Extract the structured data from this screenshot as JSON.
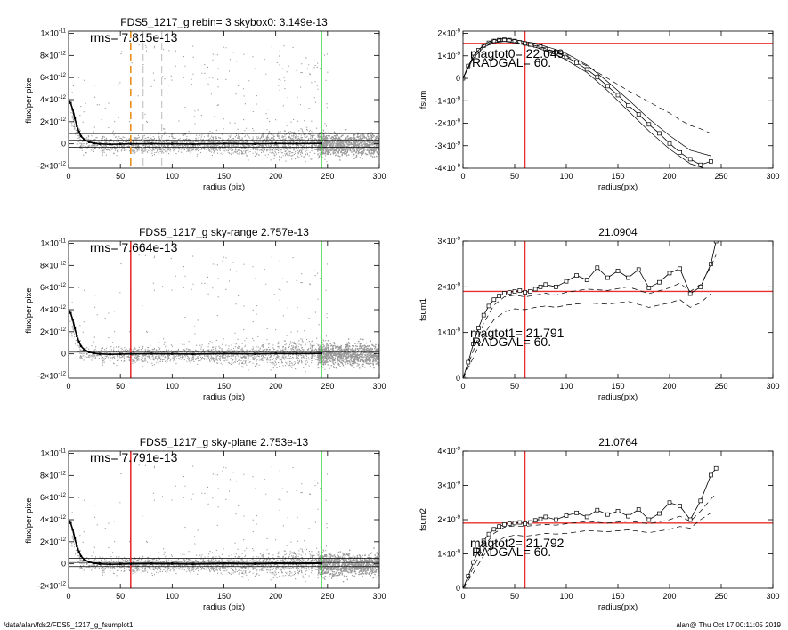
{
  "footer": {
    "left": "/data/alan/fds2/FDS5_1217_g_fsumplot1",
    "right": "alan@  Thu Oct 17 00:11:05 2019"
  },
  "colors": {
    "scatter": "#9a9a9a",
    "profile": "#000000",
    "red_marker": "#e8312f",
    "green_marker": "#22cc22",
    "orange_marker": "#e8901e",
    "gray_marker": "#bbbbbb"
  },
  "chart_data": [
    {
      "type": "scatter",
      "title": "FDS5_1217_g rebin= 3    skybox0:  3.149e-13",
      "annotation": "rms= 7.815e-13",
      "xlabel": "radius (pix)",
      "ylabel": "flux/per pixel",
      "xlim": [
        0,
        300
      ],
      "ylim": [
        -2.2e-12,
        1.02e-11
      ],
      "xticks": [
        "0",
        "50",
        "100",
        "150",
        "200",
        "250",
        "300"
      ],
      "yticks": [
        {
          "v": -2e-12,
          "m": "-2",
          "e": "-12"
        },
        {
          "v": 0,
          "m": "0",
          "e": ""
        },
        {
          "v": 2e-12,
          "m": "2",
          "e": "-12"
        },
        {
          "v": 4e-12,
          "m": "4",
          "e": "-12"
        },
        {
          "v": 6e-12,
          "m": "6",
          "e": "-12"
        },
        {
          "v": 8e-12,
          "m": "8",
          "e": "-12"
        },
        {
          "v": 1e-11,
          "m": "1",
          "e": "-11"
        }
      ],
      "hlines": [
        3.2e-13,
        -3e-13,
        9.3e-13
      ],
      "vlines": [
        {
          "x": 60,
          "color": "orange",
          "style": "dashed"
        },
        {
          "x": 72,
          "color": "gray",
          "style": "dashed"
        },
        {
          "x": 90,
          "color": "gray",
          "style": "dashed"
        },
        {
          "x": 244,
          "color": "green",
          "style": "solid"
        }
      ],
      "profile": {
        "x": [
          0,
          2,
          4,
          6,
          8,
          10,
          12,
          15,
          20,
          25,
          30,
          40,
          50,
          60,
          80,
          100,
          120,
          150,
          180,
          200,
          220,
          244
        ],
        "y": [
          3.9e-12,
          3.7e-12,
          3.1e-12,
          2.3e-12,
          1.6e-12,
          1.1e-12,
          7e-13,
          4e-13,
          1.5e-13,
          5e-14,
          0,
          -4e-14,
          -2e-14,
          0,
          1e-14,
          0,
          -2e-14,
          2e-14,
          0,
          3e-14,
          2e-14,
          4e-14
        ]
      }
    },
    {
      "type": "line",
      "title": "",
      "ylabel": "fsum",
      "xlabel": "radius(pix)",
      "xlim": [
        0,
        300
      ],
      "ylim": [
        -4e-09,
        2.1e-09
      ],
      "xticks": [
        "0",
        "50",
        "100",
        "150",
        "200",
        "250",
        "300"
      ],
      "yticks": [
        {
          "v": -4e-09,
          "m": "-4",
          "e": "-9"
        },
        {
          "v": -3e-09,
          "m": "-3",
          "e": "-9"
        },
        {
          "v": -2e-09,
          "m": "-2",
          "e": "-9"
        },
        {
          "v": -1e-09,
          "m": "-1",
          "e": "-9"
        },
        {
          "v": 0,
          "m": "0",
          "e": ""
        },
        {
          "v": 1e-09,
          "m": "1",
          "e": "-9"
        },
        {
          "v": 2e-09,
          "m": "2",
          "e": "-9"
        }
      ],
      "annotation_mag": "magtot0=  22.049",
      "annotation_rad": "RADGAL=     60.",
      "vline": 60,
      "hline": 1.55e-09,
      "series": [
        {
          "style": "squares",
          "x": [
            0,
            5,
            10,
            15,
            20,
            25,
            30,
            35,
            40,
            45,
            50,
            55,
            60,
            65,
            70,
            75,
            80,
            90,
            100,
            110,
            120,
            130,
            140,
            150,
            160,
            170,
            180,
            190,
            200,
            210,
            220,
            230,
            240
          ],
          "y": [
            0,
            5.5e-10,
            9.5e-10,
            1.25e-09,
            1.45e-09,
            1.58e-09,
            1.66e-09,
            1.7e-09,
            1.72e-09,
            1.7e-09,
            1.66e-09,
            1.6e-09,
            1.55e-09,
            1.5e-09,
            1.46e-09,
            1.42e-09,
            1.3e-09,
            1.15e-09,
            9.5e-10,
            7e-10,
            4e-10,
            5e-11,
            -3.5e-10,
            -7.5e-10,
            -1.2e-09,
            -1.6e-09,
            -2.05e-09,
            -2.45e-09,
            -2.9e-09,
            -3.3e-09,
            -3.6e-09,
            -3.85e-09,
            -3.7e-09
          ]
        },
        {
          "style": "solid",
          "x": [
            0,
            10,
            20,
            30,
            40,
            50,
            60,
            70,
            80,
            90,
            100,
            120,
            140,
            160,
            180,
            200,
            220,
            240
          ],
          "y": [
            0,
            1e-09,
            1.5e-09,
            1.72e-09,
            1.78e-09,
            1.72e-09,
            1.63e-09,
            1.56e-09,
            1.42e-09,
            1.28e-09,
            1.1e-09,
            6e-10,
            -1.5e-10,
            -9.5e-10,
            -1.8e-09,
            -2.55e-09,
            -3.2e-09,
            -3.45e-09
          ]
        },
        {
          "style": "solid",
          "x": [
            0,
            10,
            20,
            30,
            40,
            50,
            60,
            70,
            80,
            90,
            100,
            120,
            140,
            160,
            180,
            200,
            220,
            240
          ],
          "y": [
            0,
            9e-10,
            1.38e-09,
            1.58e-09,
            1.64e-09,
            1.58e-09,
            1.48e-09,
            1.38e-09,
            1.22e-09,
            1.05e-09,
            8.2e-10,
            2.6e-10,
            -5.5e-10,
            -1.45e-09,
            -2.35e-09,
            -3.15e-09,
            -3.8e-09,
            -4.1e-09
          ]
        },
        {
          "style": "dashed",
          "x": [
            0,
            10,
            20,
            30,
            40,
            50,
            60,
            70,
            80,
            90,
            100,
            120,
            140,
            160,
            180,
            200,
            210,
            220,
            230,
            240
          ],
          "y": [
            0,
            1e-09,
            1.48e-09,
            1.64e-09,
            1.66e-09,
            1.6e-09,
            1.52e-09,
            1.45e-09,
            1.32e-09,
            1.18e-09,
            1e-09,
            5.5e-10,
            0,
            -5.5e-10,
            -1.05e-09,
            -1.55e-09,
            -1.85e-09,
            -2.1e-09,
            -2.25e-09,
            -2.45e-09
          ]
        }
      ]
    },
    {
      "type": "scatter",
      "title": "FDS5_1217_g sky-range  2.757e-13",
      "annotation": "rms= 7.664e-13",
      "xlabel": "radius (pix)",
      "ylabel": "flux/per pixel",
      "xlim": [
        0,
        300
      ],
      "ylim": [
        -2.2e-12,
        1.02e-11
      ],
      "xticks": [
        "0",
        "50",
        "100",
        "150",
        "200",
        "250",
        "300"
      ],
      "yticks": [
        {
          "v": -2e-12,
          "m": "-2",
          "e": "-12"
        },
        {
          "v": 0,
          "m": "0",
          "e": ""
        },
        {
          "v": 2e-12,
          "m": "2",
          "e": "-12"
        },
        {
          "v": 4e-12,
          "m": "4",
          "e": "-12"
        },
        {
          "v": 6e-12,
          "m": "6",
          "e": "-12"
        },
        {
          "v": 8e-12,
          "m": "8",
          "e": "-12"
        },
        {
          "v": 1e-11,
          "m": "1",
          "e": "-11"
        }
      ],
      "hlines": [
        1.5e-13
      ],
      "vlines": [
        {
          "x": 60,
          "color": "red",
          "style": "solid"
        },
        {
          "x": 244,
          "color": "green",
          "style": "solid"
        }
      ],
      "profile": {
        "x": [
          0,
          2,
          4,
          6,
          8,
          10,
          12,
          15,
          20,
          25,
          30,
          40,
          50,
          60,
          80,
          100,
          120,
          150,
          180,
          200,
          220,
          244
        ],
        "y": [
          3.9e-12,
          3.7e-12,
          3.1e-12,
          2.3e-12,
          1.6e-12,
          1.1e-12,
          7e-13,
          4e-13,
          1.5e-13,
          5e-14,
          0,
          -4e-14,
          -2e-14,
          0,
          1e-14,
          0,
          -2e-14,
          2e-14,
          0,
          3e-14,
          2e-14,
          4e-14
        ]
      }
    },
    {
      "type": "line",
      "title": "21.0904",
      "ylabel": "fsum1",
      "xlabel": "radius(pix)",
      "xlim": [
        0,
        300
      ],
      "ylim": [
        0,
        3e-09
      ],
      "xticks": [
        "0",
        "50",
        "100",
        "150",
        "200",
        "250",
        "300"
      ],
      "yticks": [
        {
          "v": 0,
          "m": "0",
          "e": ""
        },
        {
          "v": 1e-09,
          "m": "1",
          "e": "-9"
        },
        {
          "v": 2e-09,
          "m": "2",
          "e": "-9"
        },
        {
          "v": 3e-09,
          "m": "3",
          "e": "-9"
        }
      ],
      "annotation_mag": "magtot1=  21.791",
      "annotation_rad": "RADGAL=     60.",
      "vline": 60,
      "hline": 1.9e-09,
      "series": [
        {
          "style": "squares",
          "x": [
            0,
            5,
            10,
            15,
            20,
            25,
            30,
            35,
            40,
            45,
            50,
            55,
            60,
            65,
            70,
            75,
            80,
            90,
            100,
            110,
            120,
            130,
            140,
            150,
            160,
            170,
            180,
            190,
            200,
            210,
            220,
            230,
            240,
            245
          ],
          "y": [
            0,
            3.5e-10,
            7.5e-10,
            1.1e-09,
            1.38e-09,
            1.58e-09,
            1.72e-09,
            1.8e-09,
            1.86e-09,
            1.88e-09,
            1.9e-09,
            1.92e-09,
            1.88e-09,
            1.9e-09,
            1.95e-09,
            2e-09,
            2.05e-09,
            2e-09,
            2.12e-09,
            2.25e-09,
            2.15e-09,
            2.42e-09,
            2.2e-09,
            2.35e-09,
            2.2e-09,
            2.38e-09,
            1.98e-09,
            2.1e-09,
            2.3e-09,
            2.4e-09,
            1.85e-09,
            2e-09,
            2.5e-09,
            3e-09
          ]
        },
        {
          "style": "dashed",
          "x": [
            0,
            10,
            20,
            30,
            40,
            50,
            60,
            70,
            80,
            90,
            100,
            120,
            140,
            160,
            180,
            200,
            210,
            220,
            230,
            240,
            245
          ],
          "y": [
            0,
            6e-10,
            1.2e-09,
            1.6e-09,
            1.78e-09,
            1.82e-09,
            1.78e-09,
            1.82e-09,
            1.86e-09,
            1.82e-09,
            1.88e-09,
            1.95e-09,
            1.92e-09,
            2e-09,
            1.85e-09,
            1.98e-09,
            2.08e-09,
            1.9e-09,
            2.05e-09,
            2.45e-09,
            2.7e-09
          ]
        },
        {
          "style": "dashed",
          "x": [
            0,
            10,
            20,
            30,
            40,
            50,
            60,
            70,
            80,
            90,
            100,
            120,
            140,
            160,
            180,
            200,
            210,
            220,
            230,
            240
          ],
          "y": [
            0,
            4.5e-10,
            9.5e-10,
            1.28e-09,
            1.45e-09,
            1.52e-09,
            1.5e-09,
            1.55e-09,
            1.58e-09,
            1.55e-09,
            1.6e-09,
            1.65e-09,
            1.62e-09,
            1.68e-09,
            1.55e-09,
            1.65e-09,
            1.72e-09,
            1.55e-09,
            1.65e-09,
            1.85e-09
          ]
        }
      ]
    },
    {
      "type": "scatter",
      "title": "FDS5_1217_g sky-plane  2.753e-13",
      "annotation": "rms= 7.791e-13",
      "xlabel": "radius (pix)",
      "ylabel": "flux/per pixel",
      "xlim": [
        0,
        300
      ],
      "ylim": [
        -2.2e-12,
        1.02e-11
      ],
      "xticks": [
        "0",
        "50",
        "100",
        "150",
        "200",
        "250",
        "300"
      ],
      "yticks": [
        {
          "v": -2e-12,
          "m": "-2",
          "e": "-12"
        },
        {
          "v": 0,
          "m": "0",
          "e": ""
        },
        {
          "v": 2e-12,
          "m": "2",
          "e": "-12"
        },
        {
          "v": 4e-12,
          "m": "4",
          "e": "-12"
        },
        {
          "v": 6e-12,
          "m": "6",
          "e": "-12"
        },
        {
          "v": 8e-12,
          "m": "8",
          "e": "-12"
        },
        {
          "v": 1e-11,
          "m": "1",
          "e": "-11"
        }
      ],
      "hlines": [
        1.2e-13,
        -2.5e-13,
        5e-13
      ],
      "vlines": [
        {
          "x": 60,
          "color": "red",
          "style": "solid"
        },
        {
          "x": 244,
          "color": "green",
          "style": "solid"
        }
      ],
      "profile": {
        "x": [
          0,
          2,
          4,
          6,
          8,
          10,
          12,
          15,
          20,
          25,
          30,
          40,
          50,
          60,
          80,
          100,
          120,
          150,
          180,
          200,
          220,
          244
        ],
        "y": [
          3.9e-12,
          3.7e-12,
          3.1e-12,
          2.3e-12,
          1.6e-12,
          1.1e-12,
          7e-13,
          4e-13,
          1.5e-13,
          5e-14,
          0,
          -4e-14,
          -2e-14,
          0,
          1e-14,
          0,
          -2e-14,
          2e-14,
          0,
          3e-14,
          2e-14,
          4e-14
        ]
      }
    },
    {
      "type": "line",
      "title": "21.0764",
      "ylabel": "fsum2",
      "xlabel": "radius(pix)",
      "xlim": [
        0,
        300
      ],
      "ylim": [
        0,
        4e-09
      ],
      "xticks": [
        "0",
        "50",
        "100",
        "150",
        "200",
        "250",
        "300"
      ],
      "yticks": [
        {
          "v": 0,
          "m": "0",
          "e": ""
        },
        {
          "v": 1e-09,
          "m": "1",
          "e": "-9"
        },
        {
          "v": 2e-09,
          "m": "2",
          "e": "-9"
        },
        {
          "v": 3e-09,
          "m": "3",
          "e": "-9"
        },
        {
          "v": 4e-09,
          "m": "4",
          "e": "-9"
        }
      ],
      "annotation_mag": "magtot2=  21.792",
      "annotation_rad": "RADGAL=     60.",
      "vline": 60,
      "hline": 1.9e-09,
      "series": [
        {
          "style": "squares",
          "x": [
            0,
            5,
            10,
            15,
            20,
            25,
            30,
            35,
            40,
            45,
            50,
            55,
            60,
            65,
            70,
            75,
            80,
            90,
            100,
            110,
            120,
            130,
            140,
            150,
            160,
            170,
            180,
            190,
            200,
            210,
            220,
            230,
            240,
            245
          ],
          "y": [
            0,
            3.5e-10,
            7.5e-10,
            1.1e-09,
            1.38e-09,
            1.58e-09,
            1.72e-09,
            1.8e-09,
            1.86e-09,
            1.88e-09,
            1.9e-09,
            1.92e-09,
            1.88e-09,
            1.92e-09,
            1.98e-09,
            2.02e-09,
            2.08e-09,
            2e-09,
            2.12e-09,
            2.2e-09,
            2.08e-09,
            2.28e-09,
            2.15e-09,
            2.25e-09,
            2.1e-09,
            2.3e-09,
            2e-09,
            2.18e-09,
            2.5e-09,
            2.4e-09,
            2e-09,
            2.55e-09,
            3.3e-09,
            3.5e-09
          ]
        },
        {
          "style": "dashed",
          "x": [
            0,
            10,
            20,
            30,
            40,
            50,
            60,
            70,
            80,
            90,
            100,
            120,
            140,
            160,
            180,
            200,
            210,
            220,
            230,
            240,
            245
          ],
          "y": [
            0,
            6e-10,
            1.2e-09,
            1.6e-09,
            1.78e-09,
            1.82e-09,
            1.8e-09,
            1.84e-09,
            1.86e-09,
            1.84e-09,
            1.88e-09,
            1.95e-09,
            1.9e-09,
            1.96e-09,
            1.88e-09,
            2e-09,
            2.1e-09,
            1.95e-09,
            2.25e-09,
            2.6e-09,
            2.75e-09
          ]
        },
        {
          "style": "dashed",
          "x": [
            0,
            10,
            20,
            30,
            40,
            50,
            60,
            70,
            80,
            90,
            100,
            120,
            140,
            160,
            180,
            200,
            210,
            220,
            230,
            240
          ],
          "y": [
            0,
            4.5e-10,
            9.5e-10,
            1.3e-09,
            1.48e-09,
            1.55e-09,
            1.52e-09,
            1.55e-09,
            1.6e-09,
            1.58e-09,
            1.6e-09,
            1.68e-09,
            1.65e-09,
            1.7e-09,
            1.62e-09,
            1.72e-09,
            1.8e-09,
            1.75e-09,
            2e-09,
            2.2e-09
          ]
        }
      ]
    }
  ]
}
